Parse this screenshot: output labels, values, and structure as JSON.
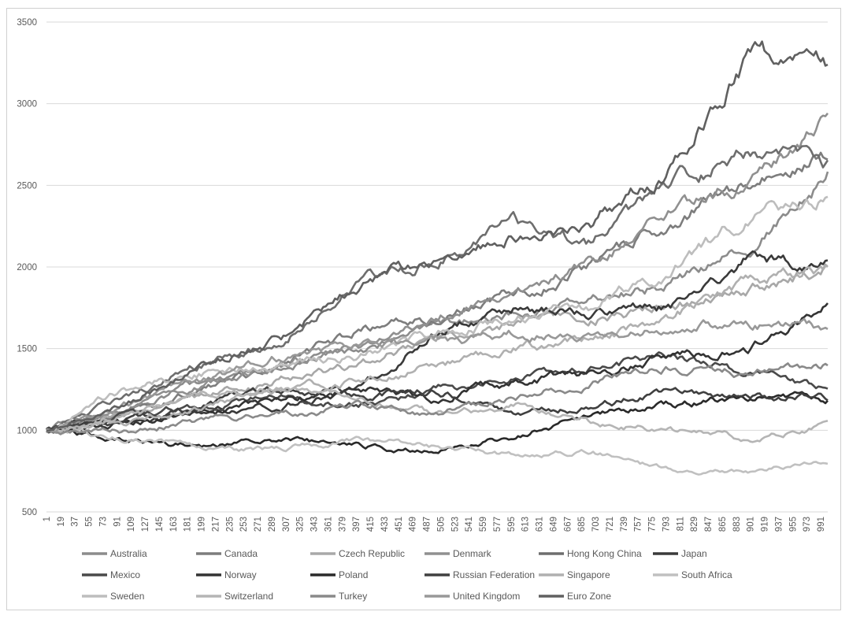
{
  "chart_data": {
    "type": "line",
    "title": "",
    "xlabel": "",
    "ylabel": "",
    "ylim": [
      500,
      3500
    ],
    "yticks": [
      500,
      1000,
      1500,
      2000,
      2500,
      3000,
      3500
    ],
    "xlim": [
      1,
      1000
    ],
    "xticks": [
      1,
      19,
      37,
      55,
      73,
      91,
      109,
      127,
      145,
      163,
      181,
      199,
      217,
      235,
      253,
      271,
      289,
      307,
      325,
      343,
      361,
      379,
      397,
      415,
      433,
      451,
      469,
      487,
      505,
      523,
      541,
      559,
      577,
      595,
      613,
      631,
      649,
      667,
      685,
      703,
      721,
      739,
      757,
      775,
      793,
      811,
      829,
      847,
      865,
      883,
      901,
      919,
      937,
      955,
      973,
      991
    ],
    "grid": "horizontal",
    "legend_position": "bottom",
    "series": [
      {
        "name": "Australia",
        "color": "#8c8c8c",
        "x": [
          1,
          100,
          200,
          300,
          400,
          500,
          600,
          700,
          800,
          900,
          1000
        ],
        "y": [
          1000,
          1150,
          1300,
          1380,
          1500,
          1620,
          1700,
          1800,
          1900,
          2100,
          2580
        ]
      },
      {
        "name": "Canada",
        "color": "#7d7d7d",
        "x": [
          1,
          100,
          200,
          300,
          400,
          500,
          600,
          700,
          800,
          900,
          1000
        ],
        "y": [
          1000,
          1100,
          1250,
          1400,
          1600,
          1700,
          1850,
          2000,
          2300,
          2500,
          2700
        ]
      },
      {
        "name": "Czech Republic",
        "color": "#a8a8a8",
        "x": [
          1,
          100,
          200,
          300,
          400,
          500,
          600,
          700,
          800,
          900,
          1000
        ],
        "y": [
          1000,
          1080,
          1200,
          1300,
          1400,
          1560,
          1650,
          1700,
          1750,
          1850,
          2000
        ]
      },
      {
        "name": "Denmark",
        "color": "#909090",
        "x": [
          1,
          100,
          200,
          300,
          400,
          500,
          600,
          700,
          800,
          900,
          1000
        ],
        "y": [
          1000,
          1120,
          1280,
          1400,
          1520,
          1720,
          1860,
          2050,
          2300,
          2550,
          2900
        ]
      },
      {
        "name": "Hong Kong China",
        "color": "#6e6e6e",
        "x": [
          1,
          100,
          200,
          300,
          400,
          500,
          600,
          700,
          800,
          900,
          1000
        ],
        "y": [
          1000,
          1200,
          1400,
          1550,
          1900,
          2050,
          2250,
          2150,
          2500,
          2700,
          2600
        ]
      },
      {
        "name": "Japan",
        "color": "#3a3a3a",
        "x": [
          1,
          100,
          200,
          300,
          400,
          500,
          600,
          700,
          800,
          900,
          1000
        ],
        "y": [
          1000,
          1050,
          1100,
          1150,
          1250,
          1600,
          1750,
          1700,
          1750,
          2050,
          2020
        ]
      },
      {
        "name": "Mexico",
        "color": "#4a4a4a",
        "x": [
          1,
          100,
          200,
          300,
          400,
          500,
          600,
          700,
          800,
          900,
          1000
        ],
        "y": [
          1000,
          1080,
          1150,
          1200,
          1150,
          1250,
          1300,
          1400,
          1450,
          1350,
          1250
        ]
      },
      {
        "name": "Norway",
        "color": "#333333",
        "x": [
          1,
          100,
          200,
          300,
          400,
          500,
          600,
          700,
          800,
          900,
          1000
        ],
        "y": [
          1000,
          1050,
          1100,
          1180,
          1250,
          1200,
          1300,
          1350,
          1450,
          1500,
          1750
        ]
      },
      {
        "name": "Poland",
        "color": "#2a2a2a",
        "x": [
          1,
          100,
          200,
          300,
          400,
          500,
          600,
          700,
          800,
          900,
          1000
        ],
        "y": [
          1000,
          950,
          900,
          950,
          900,
          880,
          950,
          1100,
          1150,
          1200,
          1180
        ]
      },
      {
        "name": "Russian Federation",
        "color": "#404040",
        "x": [
          1,
          100,
          200,
          300,
          400,
          500,
          600,
          700,
          800,
          900,
          1000
        ],
        "y": [
          1000,
          1050,
          1150,
          1250,
          1200,
          1250,
          1100,
          1150,
          1250,
          1200,
          1200
        ]
      },
      {
        "name": "Singapore",
        "color": "#b0b0b0",
        "x": [
          1,
          100,
          200,
          300,
          400,
          500,
          600,
          700,
          800,
          900,
          1000
        ],
        "y": [
          1000,
          1050,
          1150,
          1250,
          1300,
          1400,
          1500,
          1550,
          1700,
          1900,
          2000
        ]
      },
      {
        "name": "South Africa",
        "color": "#c0c0c0",
        "x": [
          1,
          100,
          200,
          300,
          400,
          500,
          600,
          700,
          800,
          900,
          1000
        ],
        "y": [
          1000,
          950,
          900,
          880,
          950,
          900,
          850,
          870,
          750,
          740,
          820
        ]
      },
      {
        "name": "Sweden",
        "color": "#bdbdbd",
        "x": [
          1,
          100,
          200,
          300,
          400,
          500,
          600,
          700,
          800,
          900,
          1000
        ],
        "y": [
          1000,
          1250,
          1350,
          1400,
          1450,
          1600,
          1700,
          1750,
          2000,
          2300,
          2450
        ]
      },
      {
        "name": "Switzerland",
        "color": "#b5b5b5",
        "x": [
          1,
          100,
          200,
          300,
          400,
          500,
          600,
          700,
          800,
          900,
          1000
        ],
        "y": [
          1000,
          1100,
          1200,
          1250,
          1200,
          1100,
          1150,
          1050,
          1000,
          950,
          1030
        ]
      },
      {
        "name": "Turkey",
        "color": "#8a8a8a",
        "x": [
          1,
          100,
          200,
          300,
          400,
          500,
          600,
          700,
          800,
          900,
          1000
        ],
        "y": [
          1000,
          1000,
          1050,
          1100,
          1150,
          1100,
          1200,
          1300,
          1400,
          1350,
          1400
        ]
      },
      {
        "name": "United Kingdom",
        "color": "#989898",
        "x": [
          1,
          100,
          200,
          300,
          400,
          500,
          600,
          700,
          800,
          900,
          1000
        ],
        "y": [
          1000,
          1150,
          1300,
          1450,
          1500,
          1550,
          1600,
          1550,
          1650,
          1650,
          1600
        ]
      },
      {
        "name": "Euro Zone",
        "color": "#606060",
        "x": [
          1,
          100,
          200,
          300,
          400,
          500,
          600,
          700,
          800,
          900,
          1000
        ],
        "y": [
          1000,
          1150,
          1400,
          1550,
          1900,
          2050,
          2200,
          2300,
          2600,
          3300,
          3200
        ]
      }
    ]
  }
}
